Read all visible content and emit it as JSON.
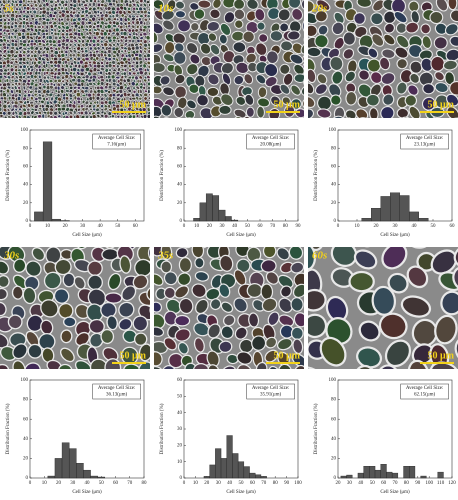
{
  "images": [
    {
      "label": "5s",
      "scale": "50 μm"
    },
    {
      "label": "10s",
      "scale": "50 μm"
    },
    {
      "label": "20s",
      "scale": "50 μm"
    },
    {
      "label": "30s",
      "scale": "50 μm"
    },
    {
      "label": "35s",
      "scale": "50 μm"
    },
    {
      "label": "60s",
      "scale": "50 μm"
    }
  ],
  "chart_data": [
    {
      "type": "bar",
      "x_label": "Cell Size (μm)",
      "y_label": "Distribution Fraction (%)",
      "annotation": [
        "Average Cell Size:",
        "7.16(μm)"
      ],
      "x": [
        5,
        10,
        15,
        20
      ],
      "values": [
        10,
        87,
        2,
        0.5
      ],
      "color": "#555555",
      "xlim": [
        0,
        65
      ],
      "xticks": [
        0,
        10,
        20,
        30,
        40,
        50,
        60
      ],
      "ylim": [
        0,
        100
      ],
      "yticks": [
        0,
        20,
        40,
        60,
        80,
        100
      ]
    },
    {
      "type": "bar",
      "x_label": "Cell Size (μm)",
      "y_label": "Distribution Fraction (%)",
      "annotation": [
        "Average Cell Size:",
        "20.08(μm)"
      ],
      "x": [
        10,
        15,
        20,
        25,
        30,
        35,
        40
      ],
      "values": [
        3,
        20,
        30,
        28,
        12,
        5,
        1
      ],
      "color": "#555555",
      "xlim": [
        0,
        90
      ],
      "xticks": [
        0,
        10,
        20,
        30,
        40,
        50,
        60,
        70,
        80,
        90
      ],
      "ylim": [
        0,
        100
      ],
      "yticks": [
        0,
        20,
        40,
        60,
        80,
        100
      ]
    },
    {
      "type": "bar",
      "x_label": "Cell Size (μm)",
      "y_label": "Distribution Fraction (%)",
      "annotation": [
        "Average Cell Size:",
        "23.13(μm)"
      ],
      "x": [
        15,
        20,
        25,
        30,
        35,
        40,
        45
      ],
      "values": [
        3,
        14,
        27,
        31,
        28,
        10,
        3
      ],
      "color": "#555555",
      "xlim": [
        0,
        60
      ],
      "xticks": [
        0,
        10,
        20,
        30,
        40,
        50,
        60
      ],
      "ylim": [
        0,
        100
      ],
      "yticks": [
        0,
        20,
        40,
        60,
        80,
        100
      ]
    },
    {
      "type": "bar",
      "x_label": "Cell Size (μm)",
      "y_label": "Distribution Fraction (%)",
      "annotation": [
        "Average Cell Size:",
        "36.13(μm)"
      ],
      "x": [
        15,
        20,
        25,
        30,
        35,
        40,
        45,
        50
      ],
      "values": [
        2,
        20,
        36,
        30,
        15,
        8,
        2,
        1
      ],
      "color": "#555555",
      "xlim": [
        0,
        80
      ],
      "xticks": [
        0,
        10,
        20,
        30,
        40,
        50,
        60,
        70,
        80
      ],
      "ylim": [
        0,
        100
      ],
      "yticks": [
        0,
        20,
        40,
        60,
        80,
        100
      ]
    },
    {
      "type": "bar",
      "x_label": "Cell Size (μm)",
      "y_label": "Distribution Fraction (%)",
      "annotation": [
        "Average Cell Size:",
        "35.91(μm)"
      ],
      "x": [
        20,
        25,
        30,
        35,
        40,
        45,
        50,
        55,
        60,
        65,
        70
      ],
      "values": [
        1,
        8,
        18,
        12,
        26,
        15,
        10,
        7,
        3,
        2,
        1
      ],
      "color": "#555555",
      "xlim": [
        0,
        100
      ],
      "xticks": [
        0,
        10,
        20,
        30,
        40,
        50,
        60,
        70,
        80,
        90,
        100
      ],
      "ylim": [
        0,
        60
      ],
      "yticks": [
        0,
        10,
        20,
        30,
        40,
        50,
        60
      ]
    },
    {
      "type": "bar",
      "x_label": "Cell Size (μm)",
      "y_label": "Distribution Fraction (%)",
      "annotation": [
        "Average Cell Size:",
        "62.15(μm)"
      ],
      "x": [
        25,
        30,
        40,
        45,
        50,
        55,
        60,
        65,
        70,
        80,
        85,
        95,
        110
      ],
      "values": [
        2,
        3,
        5,
        12,
        12,
        8,
        14,
        6,
        5,
        12,
        12,
        2,
        6
      ],
      "color": "#555555",
      "xlim": [
        20,
        120
      ],
      "xticks": [
        20,
        30,
        40,
        50,
        60,
        70,
        80,
        90,
        100,
        110,
        120
      ],
      "ylim": [
        0,
        100
      ],
      "yticks": [
        0,
        20,
        40,
        60,
        80,
        100
      ]
    }
  ]
}
